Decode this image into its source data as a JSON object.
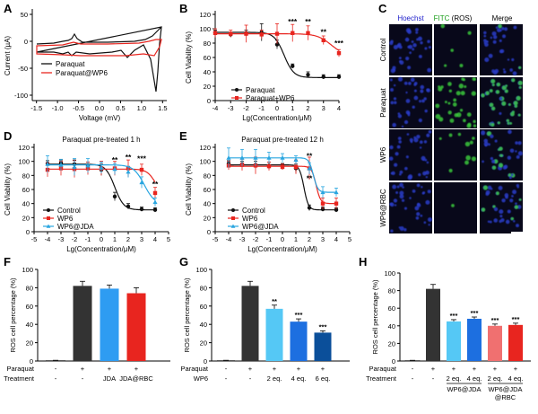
{
  "colors": {
    "black": "#111111",
    "red": "#e8251f",
    "blue": "#2aa6e0",
    "lightblue": "#2e9cf2",
    "midblue": "#1d6fe0",
    "darkblue": "#0b4f9a",
    "pink": "#f07070",
    "dark": "#333333",
    "micro_bg": "#08081a",
    "nuc": "#2a3cc8",
    "ros": "#3dd23d"
  },
  "panelA": {
    "letter": "A",
    "ylabel": "Current (µA)",
    "xlabel": "Voltage (mV)",
    "xticks": [
      "-1.5",
      "-1.0",
      "-0.5",
      "0.0",
      "0.5",
      "1.0",
      "1.5"
    ],
    "yticks": [
      "50",
      "0",
      "-50",
      "-100"
    ],
    "xlim": [
      -1.6,
      1.6
    ],
    "ylim": [
      -110,
      60
    ],
    "legend": [
      "Paraquat",
      "Paraquat@WP6"
    ]
  },
  "chart_data": [
    {
      "id": "B",
      "type": "line",
      "xlabel": "Lg(Concentration/μM)",
      "ylabel": "Cell Viability (%)",
      "xlim": [
        -4,
        4
      ],
      "ylim": [
        0,
        120
      ],
      "xticks": [
        "-4",
        "-3",
        "-2",
        "-1",
        "0",
        "1",
        "2",
        "3",
        "4"
      ],
      "yticks": [
        "0",
        "20",
        "40",
        "60",
        "80",
        "100",
        "120"
      ],
      "x": [
        -4,
        -3,
        -2,
        -1,
        0,
        1,
        2,
        3,
        4
      ],
      "series": [
        {
          "name": "Paraquat",
          "values": [
            95,
            92,
            94,
            95,
            78,
            48,
            36,
            33,
            33
          ]
        },
        {
          "name": "Paraquat+WP6",
          "values": [
            94,
            93,
            93,
            92,
            93,
            94,
            94,
            84,
            66
          ]
        }
      ],
      "annotations": [
        "***",
        "**",
        "**",
        "***"
      ]
    },
    {
      "id": "D",
      "type": "line",
      "title": "Paraquat pre-treated 1 h",
      "xlabel": "Lg(Concentration/μM)",
      "ylabel": "Cell Viability (%)",
      "xlim": [
        -5,
        5
      ],
      "ylim": [
        0,
        120
      ],
      "xticks": [
        "-5",
        "-4",
        "-3",
        "-2",
        "-1",
        "0",
        "1",
        "2",
        "3",
        "4",
        "5"
      ],
      "yticks": [
        "0",
        "20",
        "40",
        "60",
        "80",
        "100",
        "120"
      ],
      "x": [
        -4,
        -3,
        -2,
        -1,
        0,
        1,
        2,
        3,
        4
      ],
      "series": [
        {
          "name": "Control",
          "values": [
            97,
            98,
            96,
            94,
            88,
            50,
            36,
            32,
            31
          ]
        },
        {
          "name": "WP6",
          "values": [
            88,
            90,
            89,
            90,
            90,
            90,
            90,
            88,
            55
          ]
        },
        {
          "name": "WP6@JDA",
          "values": [
            96,
            95,
            92,
            94,
            91,
            89,
            85,
            70,
            42
          ]
        }
      ],
      "annotations": [
        "**",
        "**",
        "***",
        "**"
      ]
    },
    {
      "id": "E",
      "type": "line",
      "title": "Paraquat pre-treated 12 h",
      "xlabel": "Lg(Concentration/μM)",
      "ylabel": "Cell Viability (%)",
      "xlim": [
        -5,
        5
      ],
      "ylim": [
        0,
        120
      ],
      "xticks": [
        "-5",
        "-4",
        "-3",
        "-2",
        "-1",
        "0",
        "1",
        "2",
        "3",
        "4",
        "5"
      ],
      "yticks": [
        "0",
        "20",
        "40",
        "60",
        "80",
        "100",
        "120"
      ],
      "x": [
        -4,
        -3,
        -2,
        -1,
        0,
        1,
        2,
        3,
        4
      ],
      "series": [
        {
          "name": "Control",
          "values": [
            97,
            96,
            95,
            94,
            93,
            90,
            34,
            32,
            31
          ]
        },
        {
          "name": "WP6",
          "values": [
            94,
            95,
            94,
            93,
            92,
            92,
            90,
            40,
            40
          ]
        },
        {
          "name": "WP6@JDA",
          "values": [
            105,
            105,
            105,
            105,
            105,
            102,
            90,
            56,
            56
          ]
        }
      ],
      "annotations": [
        "**",
        "**"
      ]
    },
    {
      "id": "F",
      "type": "bar",
      "ylabel": "ROS cell percentage (%)",
      "ylim": [
        0,
        100
      ],
      "yticks": [
        "0",
        "20",
        "40",
        "60",
        "80",
        "100"
      ],
      "values": [
        0.5,
        82,
        79,
        74
      ],
      "row1_label": "Paraquat",
      "row1": [
        "-",
        "+",
        "+",
        "+"
      ],
      "row2_label": "Treatment",
      "row2": [
        "-",
        "-",
        "JDA",
        "JDA@RBC"
      ],
      "annotations": [
        "",
        "",
        "",
        ""
      ]
    },
    {
      "id": "G",
      "type": "bar",
      "ylabel": "ROS cell percentage (%)",
      "ylim": [
        0,
        100
      ],
      "yticks": [
        "0",
        "20",
        "40",
        "60",
        "80",
        "100"
      ],
      "values": [
        0.5,
        82,
        57,
        43,
        31
      ],
      "row1_label": "Paraquat",
      "row1": [
        "-",
        "+",
        "+",
        "+",
        "+"
      ],
      "row2_label": "WP6",
      "row2": [
        "-",
        "-",
        "2 eq.",
        "4 eq.",
        "6 eq."
      ],
      "annotations": [
        "",
        "",
        "**",
        "***",
        "***"
      ]
    },
    {
      "id": "H",
      "type": "bar",
      "ylabel": "ROS cell percentage (%)",
      "ylim": [
        0,
        100
      ],
      "yticks": [
        "0",
        "20",
        "40",
        "60",
        "80",
        "100"
      ],
      "values": [
        0.5,
        82,
        45,
        48,
        40,
        41
      ],
      "row1_label": "Paraquat",
      "row1": [
        "-",
        "+",
        "+",
        "+",
        "+",
        "+"
      ],
      "row2_label": "Treatment",
      "row2": [
        "-",
        "-",
        "2 eq.",
        "4 eq.",
        "2 eq.",
        "4 eq."
      ],
      "group_labels": [
        "WP6@JDA",
        "WP6@JDA\n@RBC"
      ],
      "annotations": [
        "",
        "",
        "***",
        "***",
        "***",
        "***"
      ]
    }
  ],
  "panelC": {
    "letter": "C",
    "columns": [
      "Hoechst",
      "FITC (ROS)",
      "Merge"
    ],
    "rows": [
      "Control",
      "Paraquat",
      "WP6",
      "WP6@RBC"
    ],
    "ros_level": [
      0.12,
      0.9,
      0.22,
      0.1
    ]
  }
}
